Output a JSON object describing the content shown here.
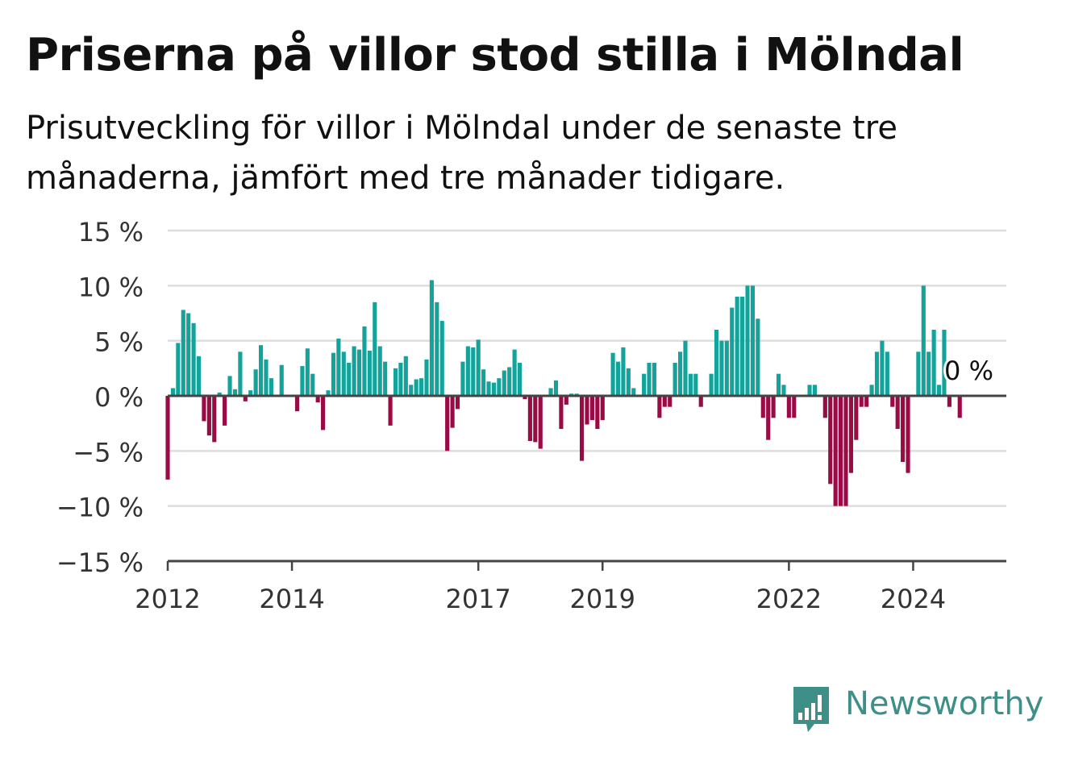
{
  "header": {
    "title": "Priserna på villor stod stilla i Mölndal",
    "subtitle": "Prisutveckling för villor i Mölndal under de senaste tre månaderna, jämfört med tre månader tidigare."
  },
  "brand": {
    "name": "Newsworthy",
    "color": "#3d8f87"
  },
  "colors": {
    "positive": "#13a39a",
    "negative": "#9a0a45",
    "grid": "#dddddd",
    "axis": "#444444"
  },
  "chart_data": {
    "type": "bar",
    "title": "Priserna på villor stod stilla i Mölndal",
    "subtitle": "Prisutveckling för villor i Mölndal under de senaste tre månaderna, jämfört med tre månader tidigare.",
    "x_start": "2012-01",
    "x_end": "2025-07",
    "x_tick_labels": [
      "2012",
      "2014",
      "2017",
      "2019",
      "2022",
      "2024"
    ],
    "y_tick_labels": [
      "15 %",
      "10 %",
      "5 %",
      "0 %",
      "−5 %",
      "−10 %",
      "−15 %"
    ],
    "ylim": [
      -15,
      15
    ],
    "unit": "%",
    "grid": true,
    "last_value_label": "0 %",
    "months": [
      "2012-01",
      "2012-02",
      "2012-03",
      "2012-04",
      "2012-05",
      "2012-06",
      "2012-07",
      "2012-08",
      "2012-09",
      "2012-10",
      "2012-11",
      "2012-12",
      "2013-01",
      "2013-02",
      "2013-03",
      "2013-04",
      "2013-05",
      "2013-06",
      "2013-07",
      "2013-08",
      "2013-09",
      "2013-10",
      "2013-11",
      "2013-12",
      "2014-01",
      "2014-02",
      "2014-03",
      "2014-04",
      "2014-05",
      "2014-06",
      "2014-07",
      "2014-08",
      "2014-09",
      "2014-10",
      "2014-11",
      "2014-12",
      "2015-01",
      "2015-02",
      "2015-03",
      "2015-04",
      "2015-05",
      "2015-06",
      "2015-07",
      "2015-08",
      "2015-09",
      "2015-10",
      "2015-11",
      "2015-12",
      "2016-01",
      "2016-02",
      "2016-03",
      "2016-04",
      "2016-05",
      "2016-06",
      "2016-07",
      "2016-08",
      "2016-09",
      "2016-10",
      "2016-11",
      "2016-12",
      "2017-01",
      "2017-02",
      "2017-03",
      "2017-04",
      "2017-05",
      "2017-06",
      "2017-07",
      "2017-08",
      "2017-09",
      "2017-10",
      "2017-11",
      "2017-12",
      "2018-01",
      "2018-02",
      "2018-03",
      "2018-04",
      "2018-05",
      "2018-06",
      "2018-07",
      "2018-08",
      "2018-09",
      "2018-10",
      "2018-11",
      "2018-12",
      "2019-01",
      "2019-02",
      "2019-03",
      "2019-04",
      "2019-05",
      "2019-06",
      "2019-07",
      "2019-08",
      "2019-09",
      "2019-10",
      "2019-11",
      "2019-12",
      "2020-01",
      "2020-02",
      "2020-03",
      "2020-04",
      "2020-05",
      "2020-06",
      "2020-07",
      "2020-08",
      "2020-09",
      "2020-10",
      "2020-11",
      "2020-12",
      "2021-01",
      "2021-02",
      "2021-03",
      "2021-04",
      "2021-05",
      "2021-06",
      "2021-07",
      "2021-08",
      "2021-09",
      "2021-10",
      "2021-11",
      "2021-12",
      "2022-01",
      "2022-02",
      "2022-03",
      "2022-04",
      "2022-05",
      "2022-06",
      "2022-07",
      "2022-08",
      "2022-09",
      "2022-10",
      "2022-11",
      "2022-12",
      "2023-01",
      "2023-02",
      "2023-03",
      "2023-04",
      "2023-05",
      "2023-06",
      "2023-07",
      "2023-08",
      "2023-09",
      "2023-10",
      "2023-11",
      "2023-12",
      "2024-01",
      "2024-02",
      "2024-03",
      "2024-04",
      "2024-05",
      "2024-06",
      "2024-07",
      "2024-08",
      "2024-09",
      "2024-10",
      "2024-11",
      "2024-12"
    ],
    "values": [
      -7.6,
      0.7,
      4.8,
      7.8,
      7.5,
      6.6,
      3.6,
      -2.3,
      -3.6,
      -4.2,
      0.3,
      -2.7,
      1.8,
      0.6,
      4.0,
      -0.5,
      0.5,
      2.4,
      4.6,
      3.3,
      1.6,
      0,
      2.8,
      0,
      0,
      -1.4,
      2.7,
      4.3,
      2.0,
      -0.6,
      -3.1,
      0.5,
      3.9,
      5.2,
      4.0,
      3.0,
      4.5,
      4.2,
      6.3,
      4.1,
      8.5,
      4.5,
      3.1,
      -2.7,
      2.5,
      3.0,
      3.6,
      1.0,
      1.5,
      1.6,
      3.3,
      10.5,
      8.5,
      6.8,
      -5.0,
      -2.9,
      -1.2,
      3.1,
      4.5,
      4.4,
      5.1,
      2.4,
      1.3,
      1.2,
      1.6,
      2.3,
      2.6,
      4.2,
      3.0,
      -0.3,
      -4.1,
      -4.2,
      -4.8,
      0,
      0.7,
      1.4,
      -3.0,
      -0.8,
      0.2,
      0.2,
      -5.9,
      -2.6,
      -2.2,
      -3.0,
      -2.2,
      0,
      3.9,
      3.1,
      4.4,
      2.5,
      0.7,
      0,
      2.0,
      3.0,
      3.0,
      -2.0,
      -1.0,
      -1.0,
      3.0,
      4.0,
      5.0,
      2.0,
      2.0,
      -1.0,
      0,
      2.0,
      6.0,
      5.0,
      5.0,
      8.0,
      9.0,
      9.0,
      10.0,
      10.0,
      7.0,
      -2.0,
      -4.0,
      -2.0,
      2.0,
      1.0,
      -2.0,
      -2.0,
      0,
      0,
      1.0,
      1.0,
      0,
      -2.0,
      -8.0,
      -10.0,
      -10.0,
      -10.0,
      -7.0,
      -4.0,
      -1.0,
      -1.0,
      1.0,
      4.0,
      5.0,
      4.0,
      -1.0,
      -3.0,
      -6.0,
      -7.0,
      0,
      4.0,
      10.0,
      4.0,
      6.0,
      1.0,
      6.0,
      -1.0,
      0,
      -2.0,
      0,
      0
    ]
  }
}
